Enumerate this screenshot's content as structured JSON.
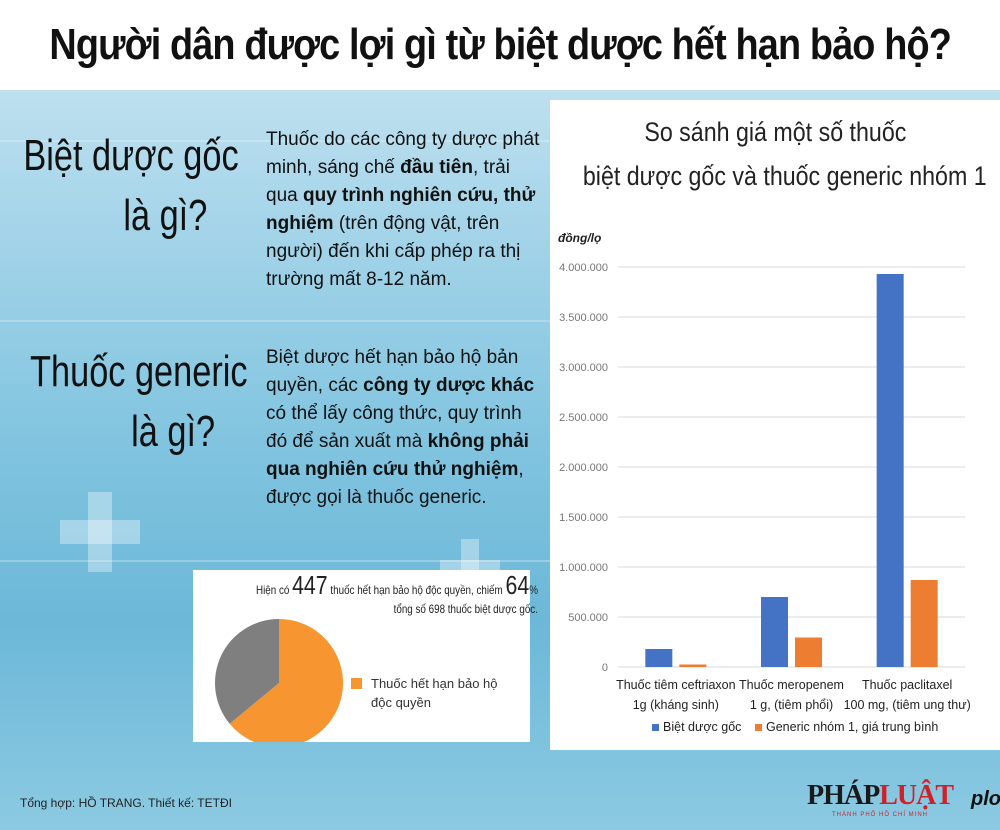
{
  "header": {
    "title": "Người dân được lợi gì từ biệt dược hết hạn bảo hộ?"
  },
  "definitions": [
    {
      "question": [
        "Biệt dược gốc",
        "là gì?"
      ],
      "answer_html": "Thuốc do các công ty dược phát minh, sáng chế <b>đầu tiên</b>, trải qua <b>quy trình nghiên cứu, thử nghiệm</b> (trên động vật, trên người) đến khi cấp phép ra thị trường mất 8-12 năm."
    },
    {
      "question": [
        "Thuốc generic",
        "là gì?"
      ],
      "answer_html": "Biệt dược hết hạn bảo hộ bản quyền, các <b>công ty dược khác</b> có thể lấy công thức, quy trình đó để sản xuất mà <b>không phải qua nghiên cứu thử nghiệm</b>, được gọi là thuốc generic."
    }
  ],
  "pie": {
    "caption_pre": "Hiện có",
    "count": "447",
    "caption_mid": "thuốc hết hạn bảo hộ độc quyền, chiếm",
    "percent": "64",
    "percent_sign": "%",
    "caption_line2": "tổng số 698 thuốc biệt dược gốc.",
    "legend_label": [
      "Thuốc hết hạn bảo hộ",
      "độc quyền"
    ],
    "colors": {
      "expired": "#f79530",
      "other": "#7f7f7f"
    }
  },
  "chart_data": {
    "type": "bar",
    "title": [
      "So sánh giá một số thuốc",
      "biệt dược gốc và thuốc generic nhóm 1"
    ],
    "ylabel": "đồng/lọ",
    "ylim": [
      0,
      4000000
    ],
    "yticks": [
      "0",
      "500.000",
      "1.000.000",
      "1.500.000",
      "2.000.000",
      "2.500.000",
      "3.000.000",
      "3.500.000",
      "4.000.000"
    ],
    "categories": [
      [
        "Thuốc tiêm ceftriaxon",
        "1g (kháng sinh)"
      ],
      [
        "Thuốc meropenem",
        "1 g, (tiêm phổi)"
      ],
      [
        "Thuốc paclitaxel",
        "100 mg,  (tiêm ung thư)"
      ]
    ],
    "series": [
      {
        "name": "Biệt dược gốc",
        "color": "#4472c4",
        "values": [
          180000,
          700000,
          3930000
        ]
      },
      {
        "name": "Generic nhóm 1, giá trung bình",
        "color": "#ed7d31",
        "values": [
          25000,
          295000,
          870000
        ]
      }
    ],
    "grid": true,
    "legend": "bottom"
  },
  "footer": {
    "credit": "Tổng hợp: HỒ TRANG. Thiết kế: TETĐI",
    "logo_dark": "PHÁP",
    "logo_red": "LUẬT",
    "logo_sub": "THÀNH PHỐ HỒ CHÍ MINH",
    "site": "plo.vn"
  }
}
